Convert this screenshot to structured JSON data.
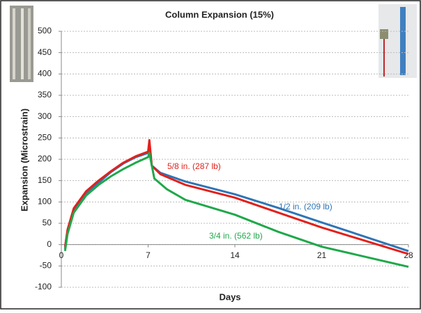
{
  "chart_data": {
    "type": "line",
    "title": "Column Expansion (15%)",
    "x_label": "Days",
    "y_label": "Expansion (Microstrain)",
    "xlim": [
      0,
      28
    ],
    "xticks": [
      0,
      7,
      14,
      21,
      28
    ],
    "ylim": [
      -100,
      500
    ],
    "yticks": [
      -100,
      -50,
      0,
      50,
      100,
      150,
      200,
      250,
      300,
      350,
      400,
      450,
      500
    ],
    "grid": true,
    "series": [
      {
        "name": "1/2 in. (209 lb)",
        "color": "#2e75b6",
        "x": [
          0.3,
          0.5,
          1,
          2,
          3,
          4,
          5,
          6,
          7,
          7.1,
          7.3,
          8,
          10,
          14,
          17.5,
          21,
          28
        ],
        "values": [
          -10,
          30,
          80,
          120,
          145,
          170,
          190,
          205,
          215,
          222,
          185,
          168,
          148,
          118,
          86,
          52,
          -15
        ]
      },
      {
        "name": "5/8 in. (287 lb)",
        "color": "#e3201b",
        "x": [
          0.3,
          0.5,
          1,
          2,
          3,
          4,
          5,
          6,
          7,
          7.1,
          7.3,
          8,
          10,
          14,
          17.5,
          21,
          28
        ],
        "values": [
          -5,
          35,
          85,
          125,
          150,
          172,
          192,
          207,
          218,
          245,
          185,
          165,
          140,
          110,
          75,
          40,
          -22
        ]
      },
      {
        "name": "3/4 in. (562 lb)",
        "color": "#1fa84a",
        "x": [
          0.3,
          0.5,
          1,
          2,
          3,
          4,
          5,
          6,
          7,
          7.1,
          7.5,
          8.5,
          10,
          14,
          17.5,
          21,
          28
        ],
        "values": [
          -15,
          25,
          75,
          115,
          140,
          160,
          177,
          192,
          205,
          215,
          155,
          130,
          105,
          70,
          30,
          -5,
          -52
        ]
      }
    ]
  }
}
